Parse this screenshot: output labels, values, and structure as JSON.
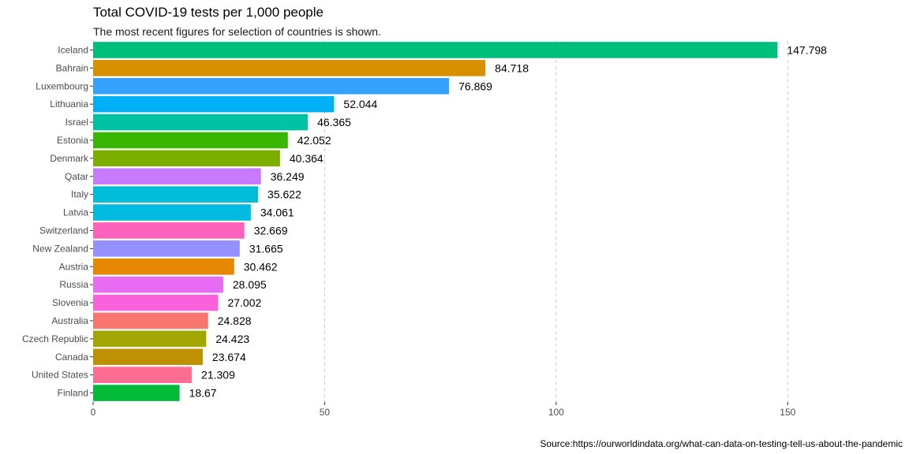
{
  "chart_data": {
    "type": "bar",
    "orientation": "horizontal",
    "title": "Total COVID-19 tests per 1,000 people",
    "subtitle": "The most recent figures for selection of countries is shown.",
    "caption": "Source:https://ourworldindata.org/what-can-data-on-testing-tell-us-about-the-pandemic",
    "xlabel": "",
    "ylabel": "",
    "xlim": [
      0,
      175
    ],
    "x_ticks": [
      0,
      50,
      100,
      150
    ],
    "grid": "vertical dashed major lines",
    "legend": "none",
    "categories": [
      "Iceland",
      "Bahrain",
      "Luxembourg",
      "Lithuania",
      "Israel",
      "Estonia",
      "Denmark",
      "Qatar",
      "Italy",
      "Latvia",
      "Switzerland",
      "New Zealand",
      "Austria",
      "Russia",
      "Slovenia",
      "Australia",
      "Czech Republic",
      "Canada",
      "United States",
      "Finland"
    ],
    "values": [
      147.798,
      84.718,
      76.869,
      52.044,
      46.365,
      42.052,
      40.364,
      36.249,
      35.622,
      34.061,
      32.669,
      31.665,
      30.462,
      28.095,
      27.002,
      24.828,
      24.423,
      23.674,
      21.309,
      18.67
    ],
    "value_labels": [
      "147.798",
      "84.718",
      "76.869",
      "52.044",
      "46.365",
      "42.052",
      "40.364",
      "36.249",
      "35.622",
      "34.061",
      "32.669",
      "31.665",
      "30.462",
      "28.095",
      "27.002",
      "24.828",
      "24.423",
      "23.674",
      "21.309",
      "18.67"
    ],
    "colors": [
      "#00BF7D",
      "#D89000",
      "#35A2FF",
      "#00B0F6",
      "#00C1A3",
      "#39B600",
      "#7CAE00",
      "#C77CFF",
      "#00BCD8",
      "#00BAE0",
      "#FF62BC",
      "#9590FF",
      "#E58700",
      "#E76BF3",
      "#FA62DB",
      "#F8766D",
      "#A3A500",
      "#BF9000",
      "#FF6C91",
      "#00BA38"
    ]
  }
}
